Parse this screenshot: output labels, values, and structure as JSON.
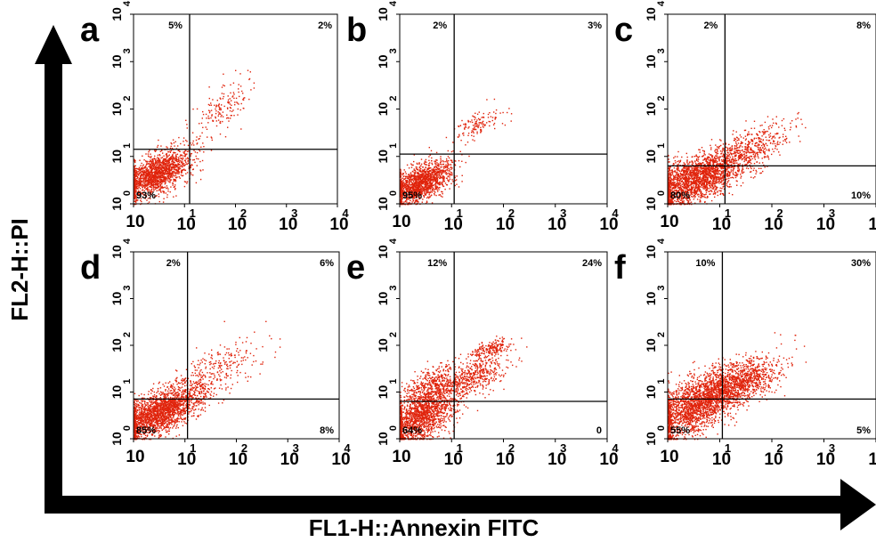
{
  "figure": {
    "x_axis_label": "FL1-H::Annexin FITC",
    "y_axis_label": "FL2-H::PI"
  },
  "colors": {
    "dots": "#e0240c",
    "axes": "#000000",
    "background": "#ffffff"
  },
  "chart_data": [
    {
      "type": "scatter",
      "panel": "a",
      "scale": "log",
      "xlim": [
        0,
        4
      ],
      "ylim": [
        0,
        4
      ],
      "x_tick_labels": [
        "10",
        "10",
        "10",
        "10",
        "10"
      ],
      "x_tick_exponents": [
        "0",
        "1",
        "2",
        "3",
        "4"
      ],
      "y_tick_labels": [
        "10",
        "10",
        "10",
        "10",
        "10"
      ],
      "y_tick_exponents": [
        "0",
        "1",
        "2",
        "3",
        "4"
      ],
      "gate": {
        "x": 1.1,
        "y": 1.15
      },
      "quadrants": {
        "upper_left": "5%",
        "upper_right": "2%",
        "lower_left": "93%",
        "lower_right": ""
      },
      "clusters": [
        {
          "cx": 0.45,
          "cy": 0.65,
          "sx": 0.35,
          "sy": 0.28,
          "n": 1600
        },
        {
          "cx": 1.75,
          "cy": 2.05,
          "sx": 0.3,
          "sy": 0.35,
          "n": 160
        }
      ]
    },
    {
      "type": "scatter",
      "panel": "b",
      "scale": "log",
      "xlim": [
        0,
        4
      ],
      "ylim": [
        0,
        4
      ],
      "x_tick_labels": [
        "10",
        "10",
        "10",
        "10",
        "10"
      ],
      "x_tick_exponents": [
        "0",
        "1",
        "2",
        "3",
        "4"
      ],
      "y_tick_labels": [
        "10",
        "10",
        "10",
        "10",
        "10"
      ],
      "y_tick_exponents": [
        "0",
        "1",
        "2",
        "3",
        "4"
      ],
      "gate": {
        "x": 1.05,
        "y": 1.05
      },
      "quadrants": {
        "upper_left": "2%",
        "upper_right": "3%",
        "lower_left": "95%",
        "lower_right": ""
      },
      "clusters": [
        {
          "cx": 0.4,
          "cy": 0.45,
          "sx": 0.3,
          "sy": 0.25,
          "n": 1500
        },
        {
          "cx": 1.5,
          "cy": 1.65,
          "sx": 0.25,
          "sy": 0.2,
          "n": 140
        }
      ]
    },
    {
      "type": "scatter",
      "panel": "c",
      "scale": "log",
      "xlim": [
        0,
        4
      ],
      "ylim": [
        0,
        4
      ],
      "x_tick_labels": [
        "10",
        "10",
        "10",
        "10",
        "10"
      ],
      "x_tick_exponents": [
        "0",
        "1",
        "2",
        "3",
        "4"
      ],
      "y_tick_labels": [
        "10",
        "10",
        "10",
        "10",
        "10"
      ],
      "y_tick_exponents": [
        "0",
        "1",
        "2",
        "3",
        "4"
      ],
      "gate": {
        "x": 1.1,
        "y": 0.8
      },
      "quadrants": {
        "upper_left": "2%",
        "upper_right": "8%",
        "lower_left": "80%",
        "lower_right": "10%"
      },
      "clusters": [
        {
          "cx": 0.55,
          "cy": 0.55,
          "sx": 0.45,
          "sy": 0.32,
          "n": 2200
        },
        {
          "cx": 1.55,
          "cy": 1.15,
          "sx": 0.4,
          "sy": 0.3,
          "n": 450
        }
      ]
    },
    {
      "type": "scatter",
      "panel": "d",
      "scale": "log",
      "xlim": [
        0,
        4
      ],
      "ylim": [
        0,
        4
      ],
      "x_tick_labels": [
        "10",
        "10",
        "10",
        "10",
        "10"
      ],
      "x_tick_exponents": [
        "0",
        "1",
        "2",
        "3",
        "4"
      ],
      "y_tick_labels": [
        "10",
        "10",
        "10",
        "10",
        "10"
      ],
      "y_tick_exponents": [
        "0",
        "1",
        "2",
        "3",
        "4"
      ],
      "gate": {
        "x": 1.05,
        "y": 0.85
      },
      "quadrants": {
        "upper_left": "2%",
        "upper_right": "6%",
        "lower_left": "85%",
        "lower_right": "8%"
      },
      "clusters": [
        {
          "cx": 0.5,
          "cy": 0.6,
          "sx": 0.4,
          "sy": 0.3,
          "n": 2000
        },
        {
          "cx": 1.6,
          "cy": 1.45,
          "sx": 0.4,
          "sy": 0.35,
          "n": 300
        }
      ]
    },
    {
      "type": "scatter",
      "panel": "e",
      "scale": "log",
      "xlim": [
        0,
        4
      ],
      "ylim": [
        0,
        4
      ],
      "x_tick_labels": [
        "10",
        "10",
        "10",
        "10",
        "10"
      ],
      "x_tick_exponents": [
        "0",
        "1",
        "2",
        "3",
        "4"
      ],
      "y_tick_labels": [
        "10",
        "10",
        "10",
        "10",
        "10"
      ],
      "y_tick_exponents": [
        "0",
        "1",
        "2",
        "3",
        "4"
      ],
      "gate": {
        "x": 1.05,
        "y": 0.8
      },
      "quadrants": {
        "upper_left": "12%",
        "upper_right": "24%",
        "lower_left": "64%",
        "lower_right": "0"
      },
      "clusters": [
        {
          "cx": 0.4,
          "cy": 0.5,
          "sx": 0.35,
          "sy": 0.35,
          "n": 1600
        },
        {
          "cx": 0.6,
          "cy": 1.15,
          "sx": 0.3,
          "sy": 0.25,
          "n": 400
        },
        {
          "cx": 1.45,
          "cy": 1.35,
          "sx": 0.3,
          "sy": 0.25,
          "n": 450
        },
        {
          "cx": 1.75,
          "cy": 1.95,
          "sx": 0.18,
          "sy": 0.12,
          "n": 180
        }
      ]
    },
    {
      "type": "scatter",
      "panel": "f",
      "scale": "log",
      "xlim": [
        0,
        4
      ],
      "ylim": [
        0,
        4
      ],
      "x_tick_labels": [
        "10",
        "10",
        "10",
        "10",
        "10"
      ],
      "x_tick_exponents": [
        "0",
        "1",
        "2",
        "3",
        "4"
      ],
      "y_tick_labels": [
        "10",
        "10",
        "10",
        "10",
        "10"
      ],
      "y_tick_exponents": [
        "0",
        "1",
        "2",
        "3",
        "4"
      ],
      "gate": {
        "x": 1.05,
        "y": 0.85
      },
      "quadrants": {
        "upper_left": "10%",
        "upper_right": "30%",
        "lower_left": "55%",
        "lower_right": "5%"
      },
      "clusters": [
        {
          "cx": 0.55,
          "cy": 0.75,
          "sx": 0.45,
          "sy": 0.4,
          "n": 2000
        },
        {
          "cx": 1.35,
          "cy": 1.2,
          "sx": 0.4,
          "sy": 0.3,
          "n": 1000
        }
      ]
    }
  ]
}
